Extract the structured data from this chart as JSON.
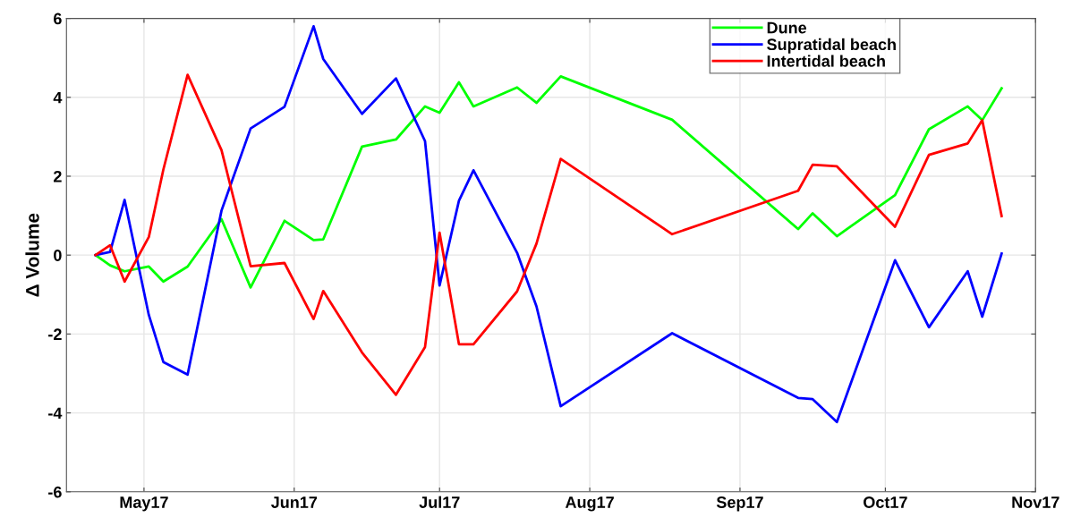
{
  "chart_data": {
    "type": "line",
    "ylabel": "Δ Volume",
    "x": [
      "2017-04-21",
      "2017-04-24",
      "2017-04-27",
      "2017-05-02",
      "2017-05-05",
      "2017-05-10",
      "2017-05-17",
      "2017-05-23",
      "2017-05-30",
      "2017-06-05",
      "2017-06-07",
      "2017-06-15",
      "2017-06-22",
      "2017-06-28",
      "2017-07-01",
      "2017-07-05",
      "2017-07-08",
      "2017-07-17",
      "2017-07-21",
      "2017-07-26",
      "2017-08-18",
      "2017-09-13",
      "2017-09-16",
      "2017-09-21",
      "2017-10-03",
      "2017-10-10",
      "2017-10-18",
      "2017-10-21",
      "2017-10-25"
    ],
    "series": [
      {
        "name": "Dune",
        "color": "#00ff00",
        "values": [
          0,
          -0.26,
          -0.41,
          -0.29,
          -0.67,
          -0.29,
          0.91,
          -0.82,
          0.87,
          0.38,
          0.4,
          2.75,
          2.93,
          3.77,
          3.61,
          4.38,
          3.77,
          4.25,
          3.86,
          4.53,
          3.43,
          0.66,
          1.06,
          0.48,
          1.52,
          3.19,
          3.77,
          3.42,
          4.23
        ]
      },
      {
        "name": "Supratidal beach",
        "color": "#0000ff",
        "values": [
          0,
          0.08,
          1.4,
          -1.52,
          -2.71,
          -3.03,
          1.13,
          3.21,
          3.76,
          5.8,
          4.97,
          3.58,
          4.48,
          2.89,
          -0.77,
          1.38,
          2.15,
          0.06,
          -1.3,
          -3.83,
          -1.98,
          -3.62,
          -3.65,
          -4.23,
          -0.13,
          -1.83,
          -0.41,
          -1.56,
          0.04
        ]
      },
      {
        "name": "Intertidal beach",
        "color": "#ff0000",
        "values": [
          0,
          0.25,
          -0.67,
          0.46,
          2.17,
          4.57,
          2.66,
          -0.28,
          -0.2,
          -1.62,
          -0.91,
          -2.47,
          -3.54,
          -2.33,
          0.57,
          -2.26,
          -2.26,
          -0.92,
          0.29,
          2.44,
          0.53,
          1.63,
          2.29,
          2.25,
          0.72,
          2.54,
          2.83,
          3.42,
          0.99
        ]
      }
    ],
    "xlim": [
      "2017-04-15",
      "2017-11-01"
    ],
    "xticks": [
      {
        "value": "2017-05-01",
        "label": "May17"
      },
      {
        "value": "2017-06-01",
        "label": "Jun17"
      },
      {
        "value": "2017-07-01",
        "label": "Jul17"
      },
      {
        "value": "2017-08-01",
        "label": "Aug17"
      },
      {
        "value": "2017-09-01",
        "label": "Sep17"
      },
      {
        "value": "2017-10-01",
        "label": "Oct17"
      },
      {
        "value": "2017-11-01",
        "label": "Nov17"
      }
    ],
    "ylim": [
      -6,
      6
    ],
    "yticks": [
      -6,
      -4,
      -2,
      0,
      2,
      4,
      6
    ],
    "grid": true,
    "legend": "top right",
    "marker": "none",
    "line_style": "solid"
  }
}
